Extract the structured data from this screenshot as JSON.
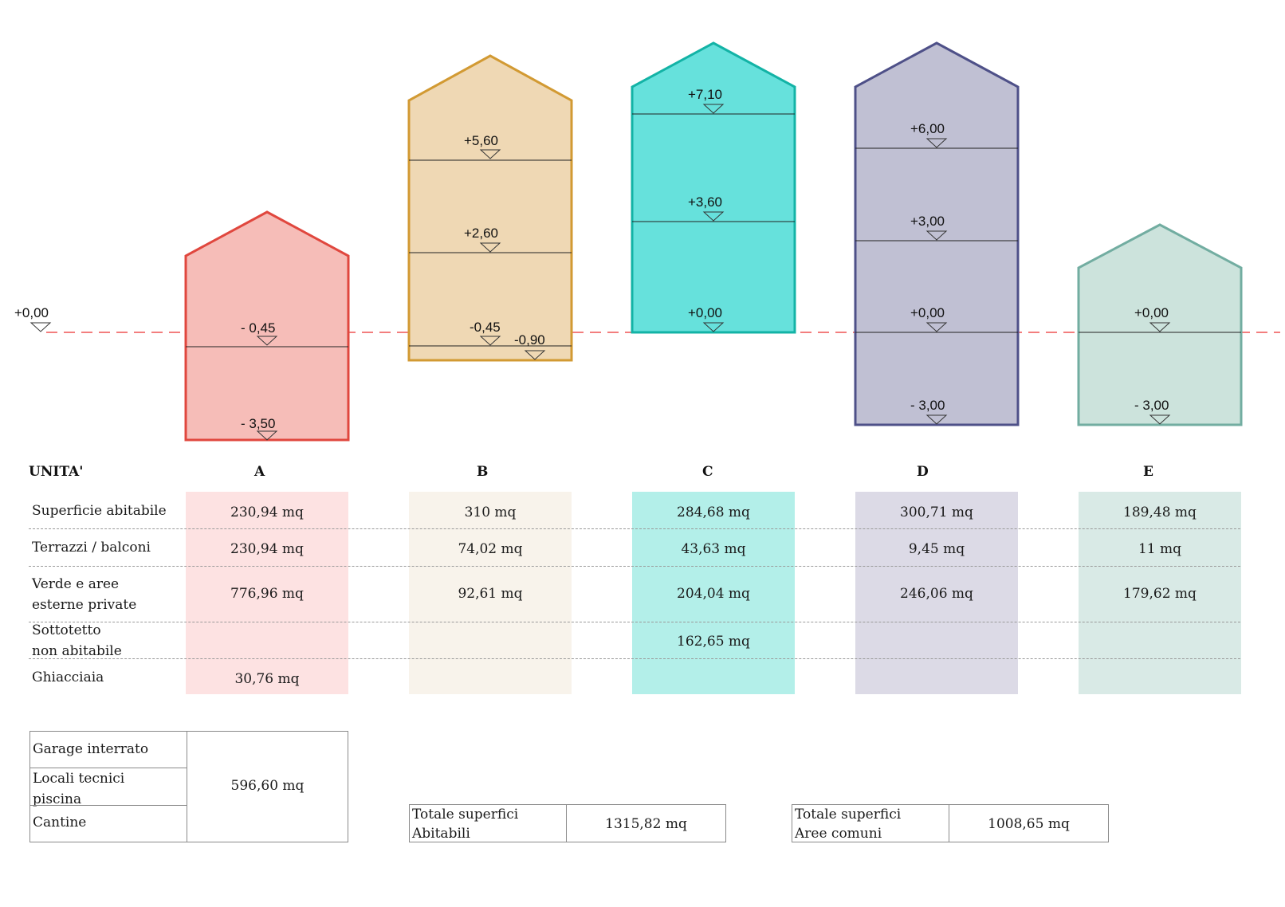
{
  "datum": {
    "label": "+0,00"
  },
  "units": [
    {
      "id": "A",
      "fill": "#f6bdb8",
      "stroke": "#e0473e",
      "levels": [
        "- 0,45",
        "- 3,50"
      ]
    },
    {
      "id": "B",
      "fill": "#efd8b4",
      "stroke": "#d29a33",
      "levels": [
        "+5,60",
        "+2,60",
        "-0,45",
        "-0,90"
      ]
    },
    {
      "id": "C",
      "fill": "#66e1dc",
      "stroke": "#13b3a6",
      "levels": [
        "+7,10",
        "+3,60",
        "+0,00"
      ]
    },
    {
      "id": "D",
      "fill": "#c0c0d3",
      "stroke": "#4e5088",
      "levels": [
        "+6,00",
        "+3,00",
        "+0,00",
        "- 3,00"
      ]
    },
    {
      "id": "E",
      "fill": "#cce3dc",
      "stroke": "#72ada1",
      "levels": [
        "+0,00",
        "- 3,00"
      ]
    }
  ],
  "table": {
    "header": "UNITA'",
    "columns": [
      "A",
      "B",
      "C",
      "D",
      "E"
    ],
    "colors": [
      "#fde2e2",
      "#f8f3eb",
      "#b3efe9",
      "#dcdae6",
      "#d9eae6"
    ],
    "rows": [
      {
        "label": "Superficie abitabile",
        "values": [
          "230,94 mq",
          "310 mq",
          "284,68 mq",
          "300,71 mq",
          "189,48 mq"
        ]
      },
      {
        "label": "Terrazzi / balconi",
        "values": [
          "230,94 mq",
          "74,02 mq",
          "43,63 mq",
          "9,45 mq",
          "11 mq"
        ]
      },
      {
        "label": "Verde  e aree\nesterne private",
        "values": [
          "776,96 mq",
          "92,61 mq",
          "204,04 mq",
          "246,06 mq",
          "179,62 mq"
        ]
      },
      {
        "label": "Sottotetto\nnon abitabile",
        "values": [
          "",
          "",
          "162,65 mq",
          "",
          ""
        ]
      },
      {
        "label": "Ghiacciaia",
        "values": [
          "30,76 mq",
          "",
          "",
          "",
          ""
        ]
      }
    ]
  },
  "common": {
    "labels": [
      "Garage interrato",
      "Locali tecnici\npiscina",
      "Cantine"
    ],
    "value": "596,60 mq"
  },
  "totals": [
    {
      "label": "Totale superfici\nAbitabili",
      "value": "1315,82 mq"
    },
    {
      "label": "Totale superfici\nAree comuni",
      "value": "1008,65 mq"
    }
  ]
}
